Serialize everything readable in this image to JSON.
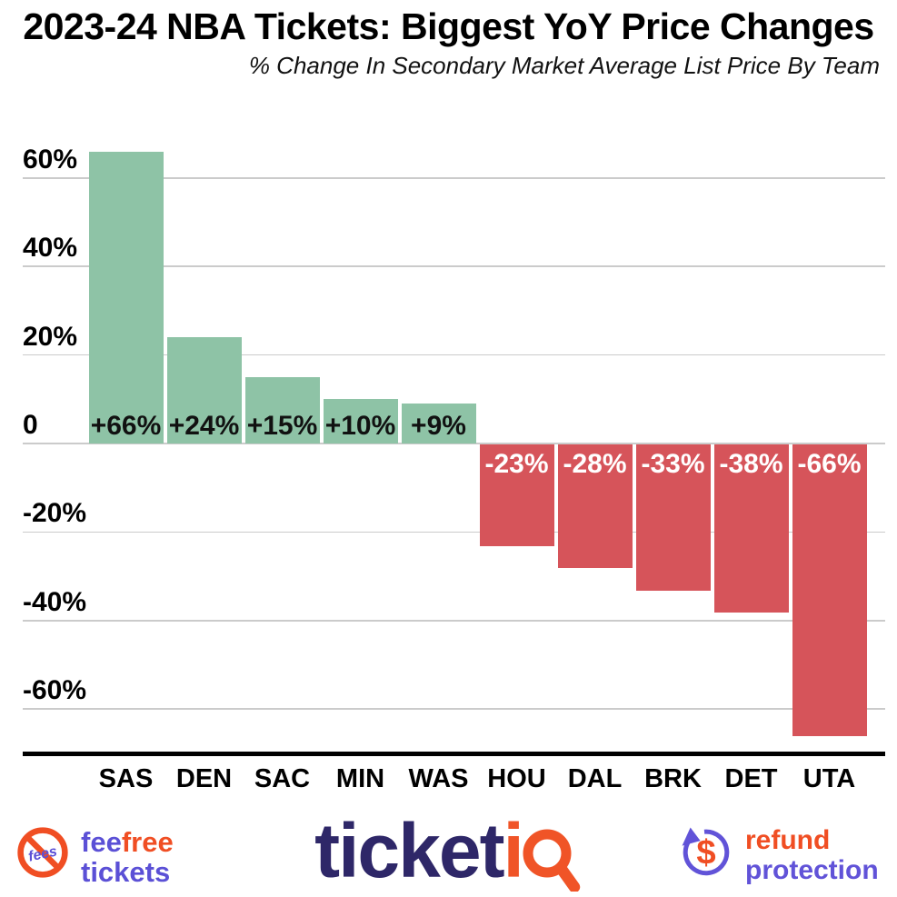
{
  "header": {
    "title": "2023-24 NBA Tickets: Biggest YoY Price Changes",
    "subtitle": "% Change In Secondary Market Average List Price By Team"
  },
  "chart_data": {
    "type": "bar",
    "title": "2023-24 NBA Tickets: Biggest YoY Price Changes",
    "subtitle": "% Change In Secondary Market Average List Price By Team",
    "categories": [
      "SAS",
      "DEN",
      "SAC",
      "MIN",
      "WAS",
      "HOU",
      "DAL",
      "BRK",
      "DET",
      "UTA"
    ],
    "values": [
      66,
      24,
      15,
      10,
      9,
      -23,
      -28,
      -33,
      -38,
      -66
    ],
    "bar_labels": [
      "+66%",
      "+24%",
      "+15%",
      "+10%",
      "+9%",
      "-23%",
      "-28%",
      "-33%",
      "-38%",
      "-66%"
    ],
    "y_ticks": [
      {
        "label": "60%",
        "value": 60
      },
      {
        "label": "40%",
        "value": 40
      },
      {
        "label": "20%",
        "value": 20
      },
      {
        "label": "0",
        "value": 0
      },
      {
        "label": "-20%",
        "value": -20
      },
      {
        "label": "-40%",
        "value": -40
      },
      {
        "label": "-60%",
        "value": -60
      }
    ],
    "ylim": [
      -72,
      68
    ],
    "xlabel": "",
    "ylabel": "",
    "grid": true,
    "legend": false,
    "positive_color": "#8ec3a6",
    "negative_color": "#d6545a"
  },
  "footer": {
    "feefree": {
      "icon_text": "fees",
      "word1_part1": "fee",
      "word1_part2": "free",
      "word2": "tickets"
    },
    "ticketiq": {
      "brand": "ticketiq",
      "text_primary": "ticket",
      "text_accent_i": "i",
      "text_accent_q": "Q"
    },
    "refund": {
      "icon_symbol": "$",
      "line1": "refund",
      "line2": "protection"
    }
  },
  "colors": {
    "positive": "#8ec3a6",
    "negative": "#d6545a",
    "gridline": "#cbcbcb",
    "navy": "#2e2768",
    "orange": "#f04e23",
    "purple": "#5b50d6"
  }
}
